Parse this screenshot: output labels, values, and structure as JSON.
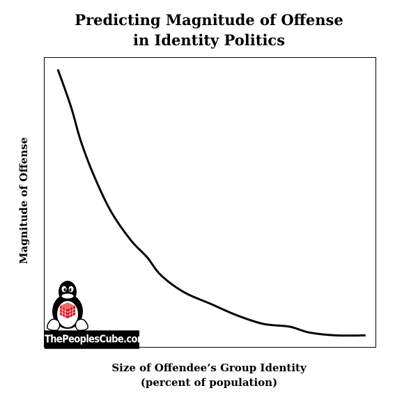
{
  "chart_data": {
    "type": "line",
    "title": "Predicting Magnitude of Offense in Identity Politics",
    "title_lines": [
      "Predicting Magnitude of Offense",
      "in Identity Politics"
    ],
    "xlabel": "Size of Offendee’s Group Identity (percent of population)",
    "xlabel_lines": [
      "Size of Offendee’s Group Identity",
      "(percent of population)"
    ],
    "ylabel": "Magnitude of Offense",
    "axis_ticks": "none",
    "grid": false,
    "legend": "none",
    "series": [
      {
        "name": "Magnitude of Offense",
        "color": "#000000",
        "note": "Decreasing convex curve (exponential-like decay); values in relative units 0-100 normalized to plot area",
        "x": [
          4,
          8,
          11,
          15,
          20,
          26,
          31,
          35,
          42,
          50,
          58,
          66,
          74,
          80,
          88,
          97
        ],
        "y": [
          96,
          83,
          71,
          59,
          47,
          37,
          31,
          25,
          19,
          15,
          11,
          8,
          7,
          5,
          4,
          4
        ]
      }
    ],
    "xlim": [
      0,
      100
    ],
    "ylim": [
      0,
      100
    ]
  },
  "watermark": {
    "text": "ThePeoplesCube.com",
    "icon": "penguin-with-red-cube-icon",
    "cube_color": "#e8262b"
  }
}
